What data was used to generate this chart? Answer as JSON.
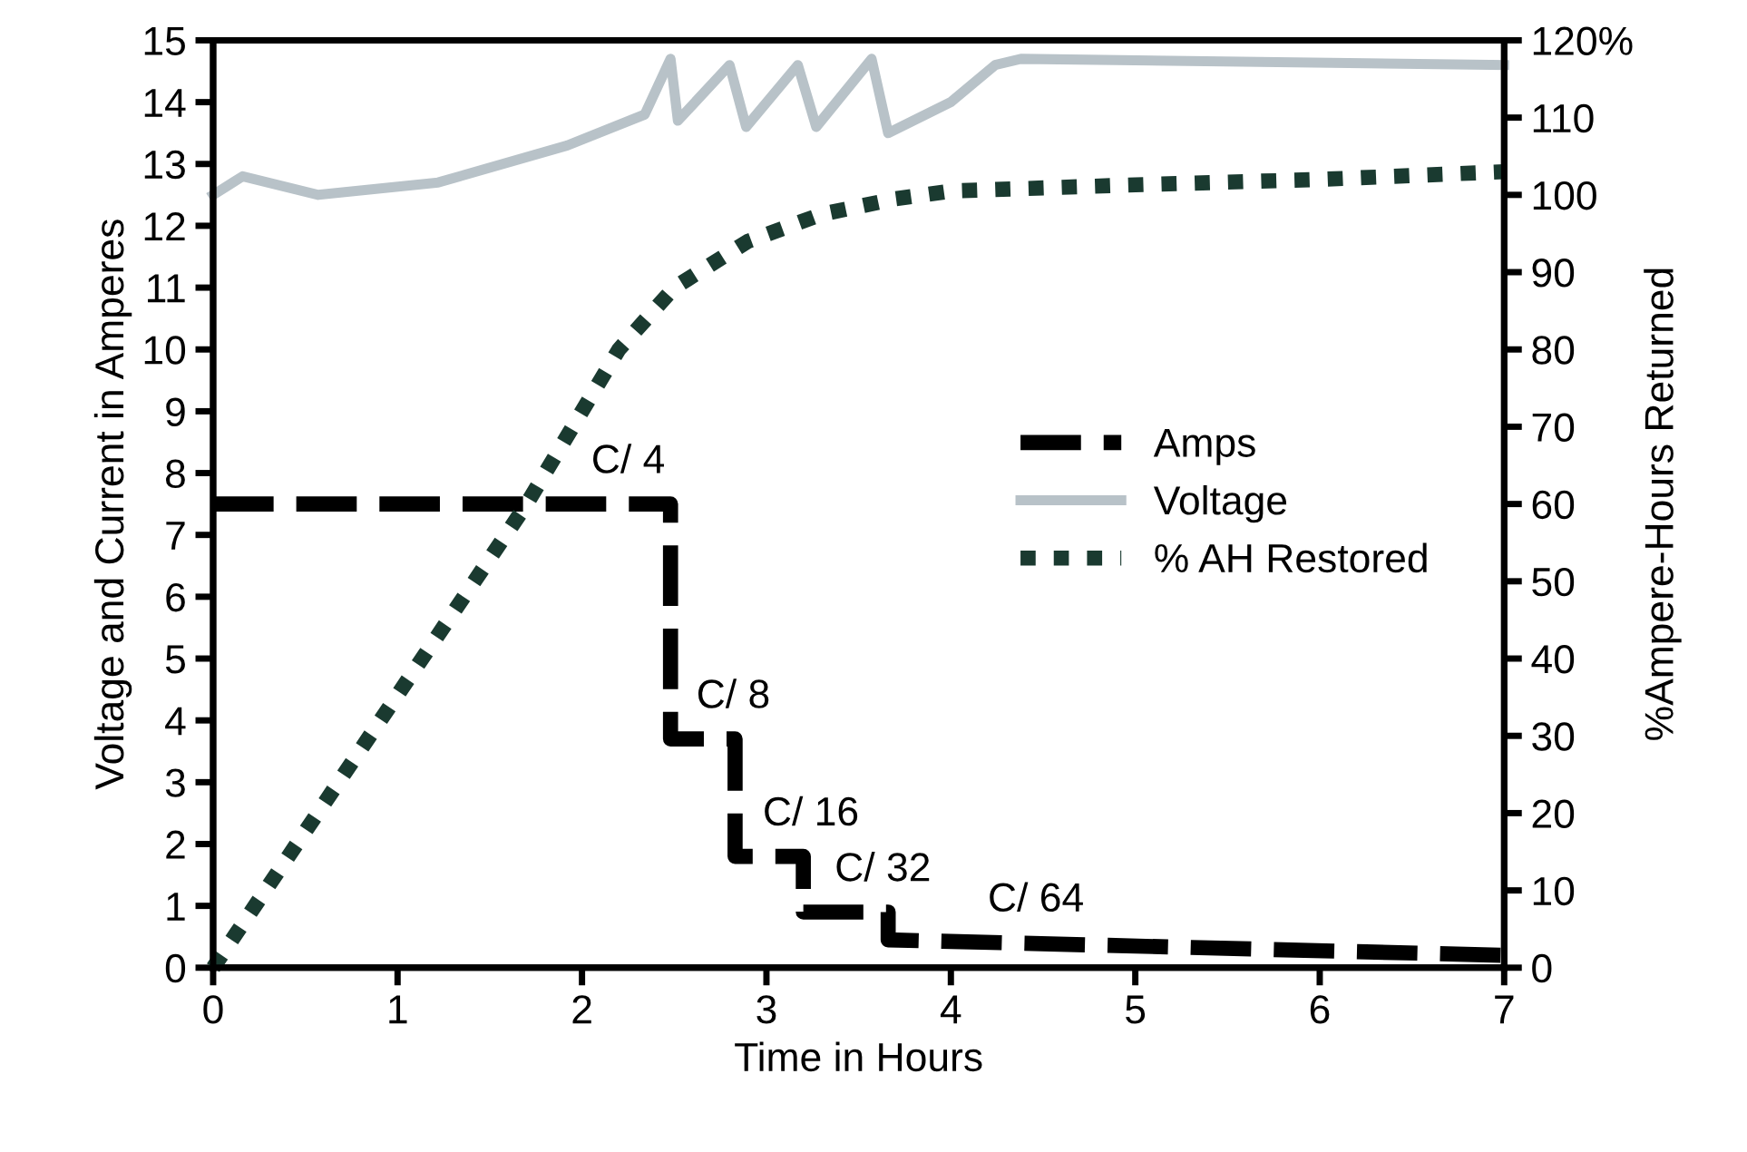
{
  "chart_data": {
    "type": "line",
    "xlabel": "Time in Hours",
    "ylabel": "Voltage and Current in Amperes",
    "y2label": "%Ampere-Hours Returned",
    "xlim": [
      0,
      7
    ],
    "xticks": [
      0,
      1,
      2,
      3,
      4,
      5,
      6,
      7
    ],
    "ylim": [
      0,
      15
    ],
    "yticks": [
      0,
      1,
      2,
      3,
      4,
      5,
      6,
      7,
      8,
      9,
      10,
      11,
      12,
      13,
      14,
      15
    ],
    "y2lim": [
      0,
      120
    ],
    "y2ticks": [
      0,
      10,
      20,
      30,
      40,
      50,
      60,
      70,
      80,
      90,
      100,
      110,
      {
        "value": 120,
        "label": "120%"
      }
    ],
    "grid": false,
    "legend": "right",
    "series": [
      {
        "name": "Amps",
        "color": "#000000",
        "line_style": "dashed",
        "x": [
          0,
          2.48,
          2.48,
          2.83,
          2.83,
          3.2,
          3.2,
          3.66,
          3.66,
          7
        ],
        "values": [
          7.5,
          7.5,
          3.7,
          3.7,
          1.8,
          1.8,
          0.9,
          0.9,
          0.45,
          0.2
        ]
      },
      {
        "name": "Voltage",
        "color": "#b8c2c8",
        "line_style": "solid",
        "x": [
          0,
          0.16,
          0.57,
          1.22,
          1.92,
          2.34,
          2.48,
          2.52,
          2.8,
          2.89,
          3.17,
          3.27,
          3.57,
          3.66,
          4.0,
          4.24,
          4.38,
          7
        ],
        "values": [
          12.5,
          12.8,
          12.5,
          12.7,
          13.3,
          13.8,
          14.7,
          13.7,
          14.6,
          13.6,
          14.6,
          13.6,
          14.7,
          13.5,
          14.0,
          14.6,
          14.7,
          14.6
        ]
      },
      {
        "name": "% AH Restored",
        "color": "#1a3a30",
        "line_style": "dotted",
        "axis": "y2",
        "x": [
          0,
          1.7,
          2.2,
          2.5,
          2.9,
          3.3,
          3.7,
          4.0,
          5,
          6,
          7
        ],
        "values": [
          0,
          60,
          80,
          88,
          94,
          97.5,
          99.5,
          100.5,
          101.3,
          102,
          103
        ]
      }
    ],
    "annotations": [
      {
        "text": "C/ 4",
        "x": 2.05,
        "y": 7.5
      },
      {
        "text": "C/ 8",
        "x": 2.62,
        "y": 3.7
      },
      {
        "text": "C/ 16",
        "x": 2.98,
        "y": 1.8
      },
      {
        "text": "C/ 32",
        "x": 3.37,
        "y": 0.9
      },
      {
        "text": "C/ 64",
        "x": 4.2,
        "y": 0.41
      }
    ]
  }
}
